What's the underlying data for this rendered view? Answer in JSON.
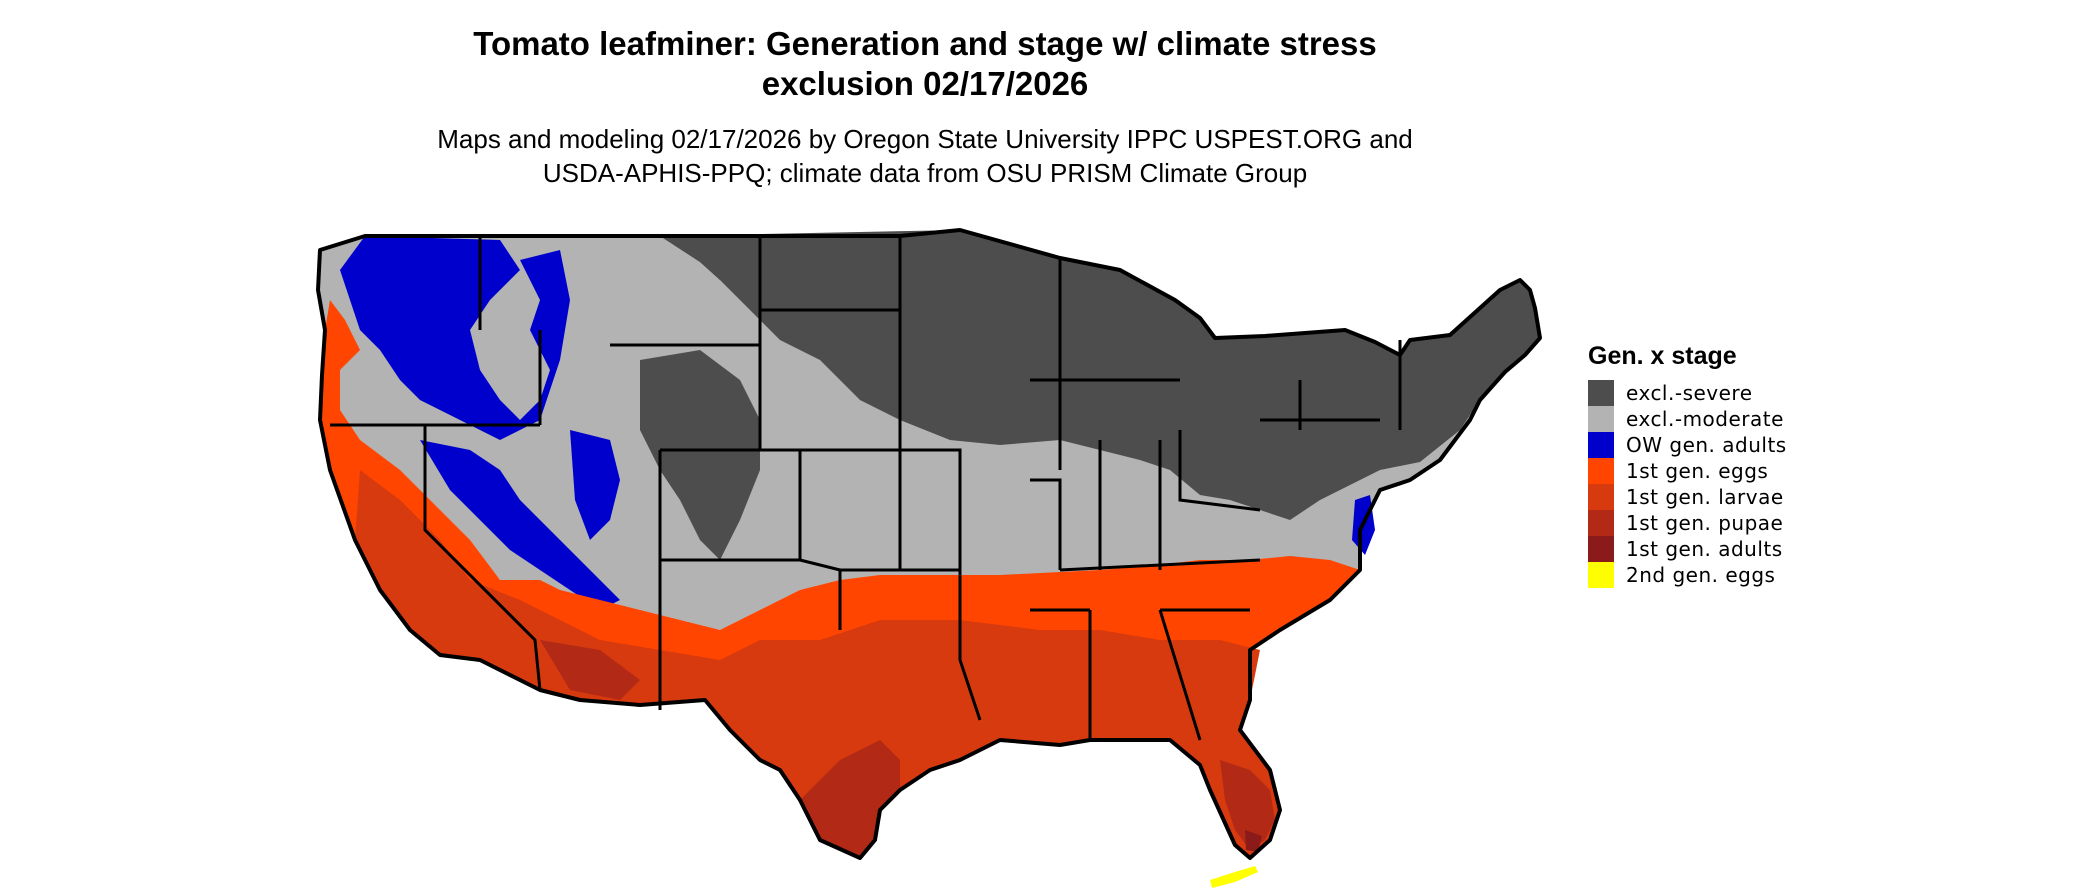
{
  "title_line1": "Tomato leafminer: Generation and stage w/ climate stress",
  "title_line2": "exclusion 02/17/2026",
  "subtitle_line1": "Maps and modeling 02/17/2026 by Oregon State University IPPC USPEST.ORG and",
  "subtitle_line2": "USDA-APHIS-PPQ; climate data from OSU PRISM Climate Group",
  "legend": {
    "title": "Gen. x stage",
    "items": [
      {
        "label": "excl.-severe",
        "color": "#4d4d4d"
      },
      {
        "label": "excl.-moderate",
        "color": "#b3b3b3"
      },
      {
        "label": "OW gen. adults",
        "color": "#0000cd"
      },
      {
        "label": "1st gen. eggs",
        "color": "#ff4500"
      },
      {
        "label": "1st gen. larvae",
        "color": "#d83a10"
      },
      {
        "label": "1st gen. pupae",
        "color": "#b22a15"
      },
      {
        "label": "1st gen. adults",
        "color": "#8b1a1a"
      },
      {
        "label": "2nd gen. eggs",
        "color": "#ffff00"
      }
    ]
  }
}
